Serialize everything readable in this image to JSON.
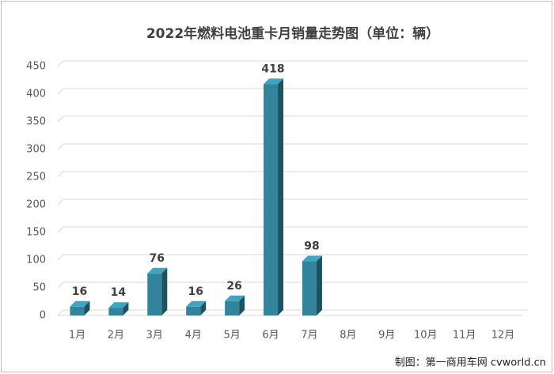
{
  "chart_data": {
    "type": "bar3d",
    "title": "2022年燃料电池重卡月销量走势图（单位：辆）",
    "categories": [
      "1月",
      "2月",
      "3月",
      "4月",
      "5月",
      "6月",
      "7月",
      "8月",
      "9月",
      "10月",
      "11月",
      "12月"
    ],
    "values": [
      16,
      14,
      76,
      16,
      26,
      418,
      98,
      null,
      null,
      null,
      null,
      null
    ],
    "color": "#31849b",
    "ylim": [
      0,
      450
    ],
    "yticks": [
      0,
      50,
      100,
      150,
      200,
      250,
      300,
      350,
      400,
      450
    ],
    "grid": true,
    "source": "制图：第一商用车网 cvworld.cn"
  }
}
